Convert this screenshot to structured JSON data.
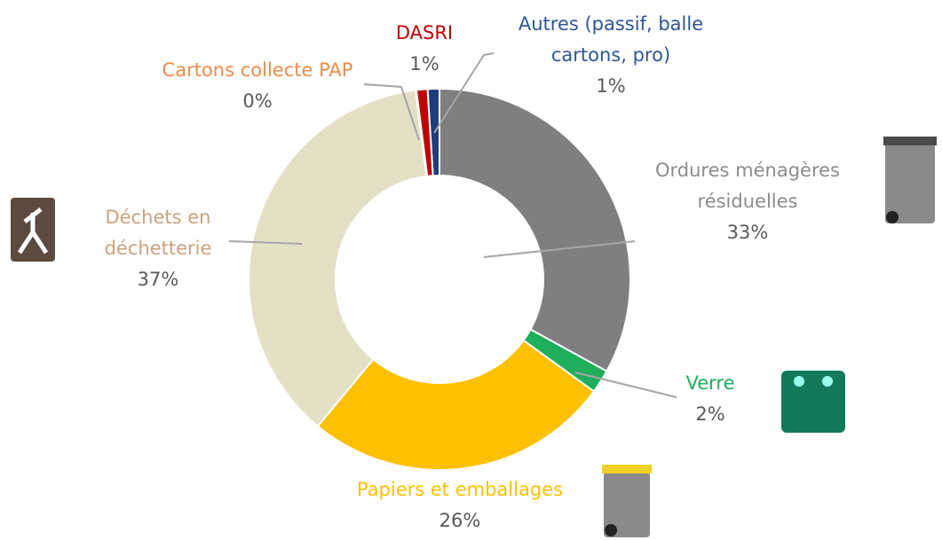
{
  "chart_data": {
    "type": "donut",
    "categories": [
      "Ordures ménagères résiduelles",
      "Verre",
      "Papiers et emballages",
      "Déchets en déchetterie",
      "Cartons collecte PAP",
      "DASRI",
      "Autres (passif, balle cartons, pro)"
    ],
    "values": [
      33,
      2,
      26,
      37,
      0,
      1,
      1
    ],
    "value_labels": [
      "33%",
      "2%",
      "26%",
      "37%",
      "0%",
      "1%",
      "1%"
    ],
    "colors": [
      "#7f7f7f",
      "#1fae5b",
      "#ffc000",
      "#e3e0c6",
      "#ededed",
      "#c00000",
      "#1f3d7a"
    ],
    "label_colors": [
      "#8c8c8c",
      "#1fae5b",
      "#ffc000",
      "#c9a27e",
      "#ed8b4a",
      "#c00000",
      "#2f5597"
    ]
  }
}
